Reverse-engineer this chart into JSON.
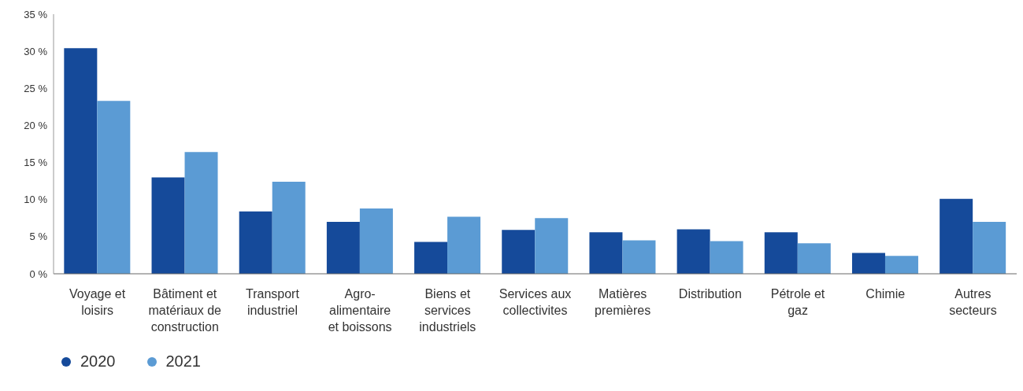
{
  "chart_data": {
    "type": "bar",
    "categories": [
      "Voyage et loisirs",
      "Bâtiment et matériaux de construction",
      "Transport industriel",
      "Agro-alimentaire et boissons",
      "Biens et services industriels",
      "Services aux collectivites",
      "Matières premières",
      "Distribution",
      "Pétrole et gaz",
      "Chimie",
      "Autres secteurs"
    ],
    "series": [
      {
        "name": "2020",
        "color": "#154a9a",
        "values": [
          30.4,
          13.0,
          8.4,
          7.0,
          4.3,
          5.9,
          5.6,
          6.0,
          5.6,
          2.8,
          10.1
        ]
      },
      {
        "name": "2021",
        "color": "#5b9bd4",
        "values": [
          23.3,
          16.4,
          12.4,
          8.8,
          7.7,
          7.5,
          4.5,
          4.4,
          4.1,
          2.4,
          7.0
        ]
      }
    ],
    "ylim": [
      0,
      35
    ],
    "yticks": [
      {
        "value": 0,
        "label": "0 %"
      },
      {
        "value": 5,
        "label": "5 %"
      },
      {
        "value": 10,
        "label": "10 %"
      },
      {
        "value": 15,
        "label": "15 %"
      },
      {
        "value": 20,
        "label": "20 %"
      },
      {
        "value": 25,
        "label": "25 %"
      },
      {
        "value": 30,
        "label": "30 %"
      },
      {
        "value": 35,
        "label": "35 %"
      }
    ],
    "grid": false,
    "legend": "bottom left"
  }
}
